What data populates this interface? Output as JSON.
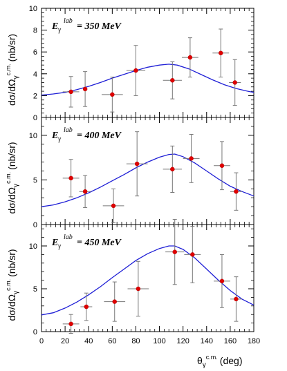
{
  "chart_data": [
    {
      "type": "scatter",
      "energy_label": "350 MeV",
      "ylabel": "dσ/dΩ",
      "yunits": "(nb/sr)",
      "y_superscript": "c.m.",
      "ylim": [
        0,
        10
      ],
      "yticks": [
        0,
        2,
        4,
        6,
        8,
        10
      ],
      "xlim": [
        0,
        180
      ],
      "points": [
        {
          "x": 25,
          "y": 2.35,
          "xerr": 7,
          "yerr": 1.4
        },
        {
          "x": 37,
          "y": 2.6,
          "xerr": 0,
          "yerr": 1.6
        },
        {
          "x": 60,
          "y": 2.1,
          "xerr": 9,
          "yerr": 1.6
        },
        {
          "x": 80,
          "y": 4.3,
          "xerr": 8,
          "yerr": 2.3
        },
        {
          "x": 111,
          "y": 3.4,
          "xerr": 8,
          "yerr": 1.7
        },
        {
          "x": 126,
          "y": 5.5,
          "xerr": 7,
          "yerr": 1.8
        },
        {
          "x": 152,
          "y": 5.9,
          "xerr": 7,
          "yerr": 2.2
        },
        {
          "x": 164,
          "y": 3.2,
          "xerr": 5,
          "yerr": 2.1
        }
      ],
      "curve": [
        [
          0,
          2.05
        ],
        [
          10,
          2.15
        ],
        [
          20,
          2.3
        ],
        [
          30,
          2.55
        ],
        [
          40,
          2.85
        ],
        [
          50,
          3.2
        ],
        [
          60,
          3.6
        ],
        [
          70,
          3.95
        ],
        [
          80,
          4.3
        ],
        [
          90,
          4.6
        ],
        [
          100,
          4.8
        ],
        [
          108,
          4.88
        ],
        [
          115,
          4.8
        ],
        [
          125,
          4.45
        ],
        [
          135,
          3.95
        ],
        [
          145,
          3.45
        ],
        [
          155,
          3.0
        ],
        [
          165,
          2.65
        ],
        [
          175,
          2.4
        ],
        [
          180,
          2.3
        ]
      ]
    },
    {
      "type": "scatter",
      "energy_label": "400 MeV",
      "ylabel": "dσ/dΩ",
      "yunits": "(nb/sr)",
      "y_superscript": "c.m.",
      "ylim": [
        0,
        12
      ],
      "yticks": [
        0,
        5,
        10
      ],
      "xlim": [
        0,
        180
      ],
      "points": [
        {
          "x": 25,
          "y": 5.2,
          "xerr": 7,
          "yerr": 2.1
        },
        {
          "x": 37,
          "y": 3.7,
          "xerr": 5,
          "yerr": 1.8
        },
        {
          "x": 61,
          "y": 2.1,
          "xerr": 9,
          "yerr": 1.9
        },
        {
          "x": 81,
          "y": 6.8,
          "xerr": 9,
          "yerr": 3.6
        },
        {
          "x": 111,
          "y": 6.2,
          "xerr": 8,
          "yerr": 2.6
        },
        {
          "x": 127,
          "y": 7.4,
          "xerr": 7,
          "yerr": 2.7
        },
        {
          "x": 153,
          "y": 6.6,
          "xerr": 7,
          "yerr": 2.7
        },
        {
          "x": 165,
          "y": 3.7,
          "xerr": 5,
          "yerr": 2.1
        }
      ],
      "curve": [
        [
          0,
          2.0
        ],
        [
          10,
          2.2
        ],
        [
          20,
          2.55
        ],
        [
          30,
          3.0
        ],
        [
          40,
          3.55
        ],
        [
          50,
          4.2
        ],
        [
          60,
          4.9
        ],
        [
          70,
          5.6
        ],
        [
          80,
          6.35
        ],
        [
          90,
          7.0
        ],
        [
          100,
          7.55
        ],
        [
          108,
          7.85
        ],
        [
          113,
          7.9
        ],
        [
          120,
          7.6
        ],
        [
          130,
          6.9
        ],
        [
          140,
          6.0
        ],
        [
          150,
          5.1
        ],
        [
          160,
          4.3
        ],
        [
          170,
          3.7
        ],
        [
          180,
          3.2
        ]
      ]
    },
    {
      "type": "scatter",
      "energy_label": "450 MeV",
      "ylabel": "dσ/dΩ",
      "yunits": "(nb/sr)",
      "y_superscript": "c.m.",
      "ylim": [
        0,
        12.5
      ],
      "yticks": [
        0,
        5,
        10
      ],
      "xlim": [
        0,
        180
      ],
      "xticks": [
        0,
        20,
        40,
        60,
        80,
        100,
        120,
        140,
        160,
        180
      ],
      "xlabel": "θγ",
      "xlabel_superscript": "c.m.",
      "xunits": "(deg)",
      "points": [
        {
          "x": 25,
          "y": 0.9,
          "xerr": 7,
          "yerr": 1.1
        },
        {
          "x": 38,
          "y": 2.9,
          "xerr": 5,
          "yerr": 1.6
        },
        {
          "x": 62,
          "y": 3.5,
          "xerr": 9,
          "yerr": 2.3
        },
        {
          "x": 82,
          "y": 5.0,
          "xerr": 9,
          "yerr": 3.2
        },
        {
          "x": 113,
          "y": 9.3,
          "xerr": 8,
          "yerr": 3.8
        },
        {
          "x": 128,
          "y": 9.0,
          "xerr": 7,
          "yerr": 3.3
        },
        {
          "x": 153,
          "y": 5.9,
          "xerr": 7,
          "yerr": 3.1
        },
        {
          "x": 165,
          "y": 3.8,
          "xerr": 5,
          "yerr": 2.6
        }
      ],
      "curve": [
        [
          0,
          1.95
        ],
        [
          10,
          2.2
        ],
        [
          20,
          2.75
        ],
        [
          30,
          3.45
        ],
        [
          40,
          4.3
        ],
        [
          50,
          5.25
        ],
        [
          60,
          6.3
        ],
        [
          70,
          7.3
        ],
        [
          80,
          8.3
        ],
        [
          90,
          9.1
        ],
        [
          100,
          9.7
        ],
        [
          108,
          10.0
        ],
        [
          113,
          10.0
        ],
        [
          120,
          9.6
        ],
        [
          130,
          8.6
        ],
        [
          140,
          7.3
        ],
        [
          150,
          6.0
        ],
        [
          160,
          4.8
        ],
        [
          170,
          3.8
        ],
        [
          180,
          3.1
        ]
      ]
    }
  ]
}
